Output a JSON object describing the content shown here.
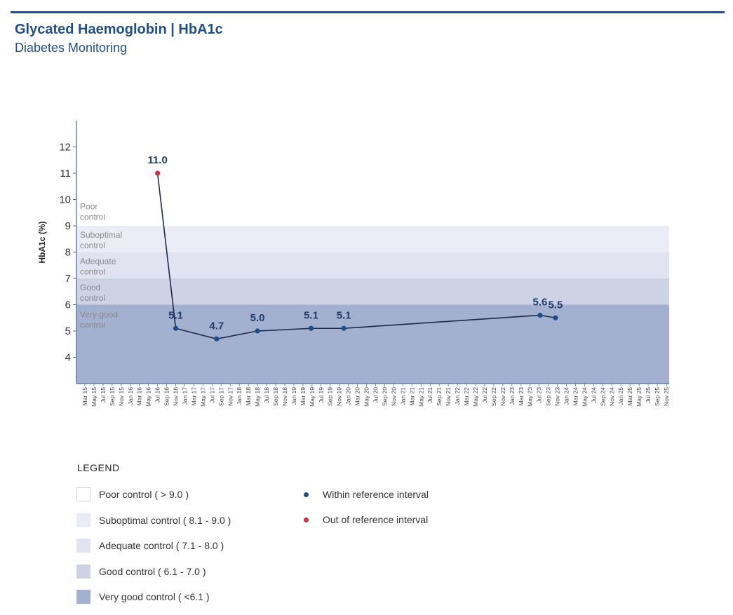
{
  "header": {
    "title": "Glycated Haemoglobin | HbA1c",
    "subtitle": "Diabetes Monitoring"
  },
  "colors": {
    "accent": "#1f4e8c",
    "axis": "#4a6fa5",
    "line": "#1b2a4a",
    "in_range_point": "#1f4e8c",
    "out_of_range_point": "#dc2a44",
    "band_poor": "#ffffff",
    "band_suboptimal": "#ebedf6",
    "band_adequate": "#e1e4f0",
    "band_good": "#cdd2e5",
    "band_very_good": "#a3b0d0",
    "band_text": "#8a8a8a"
  },
  "chart_data": {
    "type": "line",
    "title": "",
    "xlabel": "",
    "ylabel": "HbA1c (%)",
    "ylim": [
      3,
      13
    ],
    "yticks": [
      4,
      5,
      6,
      7,
      8,
      9,
      10,
      11,
      12
    ],
    "categories": [
      "Mar 15",
      "May 15",
      "Jul 15",
      "Sep 15",
      "Nov 15",
      "Jan 16",
      "Mar 16",
      "May 16",
      "Jul 16",
      "Sep 16",
      "Nov 16",
      "Jan 17",
      "Mar 17",
      "May 17",
      "Jul 17",
      "Sep 17",
      "Nov 17",
      "Jan 18",
      "Mar 18",
      "May 18",
      "Jul 18",
      "Sep 18",
      "Nov 18",
      "Jan 19",
      "Mar 19",
      "May 19",
      "Jul 19",
      "Sep 19",
      "Nov 19",
      "Jan 20",
      "Mar 20",
      "May 20",
      "Jul 20",
      "Sep 20",
      "Nov 20",
      "Jan 21",
      "Mar 21",
      "May 21",
      "Jul 21",
      "Sep 21",
      "Nov 21",
      "Jan 22",
      "Mar 22",
      "May 22",
      "Jul 22",
      "Sep 22",
      "Nov 22",
      "Jan 23",
      "Mar 23",
      "May 23",
      "Jul 23",
      "Sep 23",
      "Nov 23",
      "Jan 24",
      "Mar 24",
      "May 24",
      "Jul 24",
      "Sep 24",
      "Nov 24",
      "Jan 25",
      "Mar 25",
      "May 25",
      "Jul 25",
      "Sep 25",
      "Nov 25"
    ],
    "bands": [
      {
        "label": "Poor\ncontrol",
        "from": 9,
        "to": 13,
        "color_key": "band_poor"
      },
      {
        "label": "Suboptimal\ncontrol",
        "from": 8,
        "to": 9,
        "color_key": "band_suboptimal"
      },
      {
        "label": "Adequate\ncontrol",
        "from": 7,
        "to": 8,
        "color_key": "band_adequate"
      },
      {
        "label": "Good\ncontrol",
        "from": 6,
        "to": 7,
        "color_key": "band_good"
      },
      {
        "label": "Very good\ncontrol",
        "from": 3,
        "to": 6,
        "color_key": "band_very_good"
      }
    ],
    "series": [
      {
        "points": [
          {
            "x": 8.0,
            "y": 11.0,
            "label": "11.0",
            "in_range": false
          },
          {
            "x": 10.0,
            "y": 5.1,
            "label": "5.1",
            "in_range": true
          },
          {
            "x": 14.5,
            "y": 4.7,
            "label": "4.7",
            "in_range": true
          },
          {
            "x": 19.0,
            "y": 5.0,
            "label": "5.0",
            "in_range": true
          },
          {
            "x": 24.9,
            "y": 5.1,
            "label": "5.1",
            "in_range": true
          },
          {
            "x": 28.5,
            "y": 5.1,
            "label": "5.1",
            "in_range": true
          },
          {
            "x": 50.1,
            "y": 5.6,
            "label": "5.6",
            "in_range": true
          },
          {
            "x": 51.8,
            "y": 5.5,
            "label": "5.5",
            "in_range": true
          }
        ]
      }
    ]
  },
  "legend": {
    "title": "LEGEND",
    "bands": [
      {
        "label": "Poor control ( > 9.0 )",
        "color_key": "band_poor"
      },
      {
        "label": "Suboptimal control ( 8.1 - 9.0 )",
        "color_key": "band_suboptimal"
      },
      {
        "label": "Adequate control ( 7.1 - 8.0 )",
        "color_key": "band_adequate"
      },
      {
        "label": "Good control ( 6.1 - 7.0 )",
        "color_key": "band_good"
      },
      {
        "label": "Very good control ( <6.1 )",
        "color_key": "band_very_good"
      }
    ],
    "points": [
      {
        "label": "Within reference interval",
        "color_key": "in_range_point"
      },
      {
        "label": "Out of reference interval",
        "color_key": "out_of_range_point"
      }
    ]
  }
}
